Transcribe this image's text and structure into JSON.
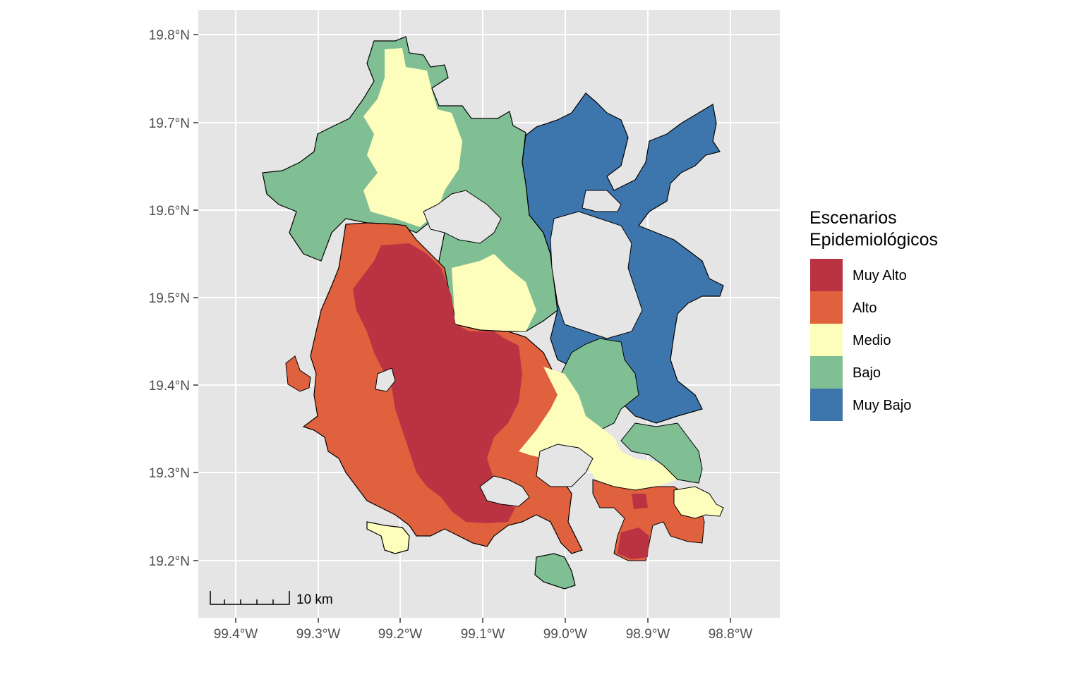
{
  "map": {
    "background": "#e5e5e5",
    "grid_color": "#ffffff",
    "outline_color": "#000000",
    "x_ticks": [
      "99.4°W",
      "99.3°W",
      "99.2°W",
      "99.1°W",
      "99.0°W",
      "98.9°W",
      "98.8°W"
    ],
    "y_ticks": [
      "19.8°N",
      "19.7°N",
      "19.6°N",
      "19.5°N",
      "19.4°N",
      "19.3°N",
      "19.2°N"
    ]
  },
  "legend": {
    "title_line1": "Escenarios",
    "title_line2": "Epidemiológicos",
    "items": [
      {
        "label": "Muy Alto",
        "color": "#b93343"
      },
      {
        "label": "Alto",
        "color": "#e0613e"
      },
      {
        "label": "Medio",
        "color": "#fefebc"
      },
      {
        "label": "Bajo",
        "color": "#7fbf93"
      },
      {
        "label": "Muy Bajo",
        "color": "#3d76ad"
      }
    ]
  },
  "scale_bar": {
    "label": "10 km"
  }
}
